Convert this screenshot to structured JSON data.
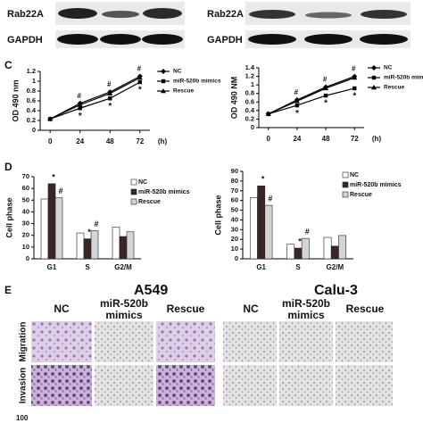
{
  "blots": [
    {
      "labels": [
        "Rab22A",
        "GAPDH"
      ]
    },
    {
      "labels": [
        "Rab22A",
        "GAPDH"
      ]
    }
  ],
  "panel_labels": [
    "C",
    "D",
    "E"
  ],
  "chart_data": [
    {
      "type": "line",
      "ylabel": "OD 490 nm",
      "xlabel": "(h)",
      "x": [
        0,
        24,
        48,
        72
      ],
      "xlim": [
        -8,
        80
      ],
      "xticks": [
        0,
        24,
        48,
        72
      ],
      "ylim": [
        0,
        1.2
      ],
      "yticks": [
        0,
        0.2,
        0.4,
        0.6,
        0.8,
        1,
        1.2
      ],
      "series": [
        {
          "name": "NC",
          "color": "#000000",
          "marker": "diamond",
          "values": [
            0.23,
            0.55,
            0.78,
            1.1
          ],
          "point_labels": [
            null,
            "#",
            "#",
            "#"
          ]
        },
        {
          "name": "miR-520b mimics",
          "color": "#000000",
          "marker": "square",
          "values": [
            0.23,
            0.45,
            0.65,
            0.98
          ],
          "point_labels": [
            null,
            "*",
            "*",
            "*"
          ]
        },
        {
          "name": "Rescue",
          "color": "#000000",
          "marker": "triangle",
          "values": [
            0.23,
            0.52,
            0.75,
            1.07
          ],
          "point_labels": [
            null,
            null,
            null,
            null
          ]
        }
      ]
    },
    {
      "type": "line",
      "ylabel": "OD 490 NM",
      "xlabel": "(h)",
      "x": [
        0,
        24,
        48,
        72
      ],
      "xlim": [
        -8,
        80
      ],
      "xticks": [
        0,
        24,
        48,
        72
      ],
      "ylim": [
        0,
        1.4
      ],
      "yticks": [
        0,
        0.2,
        0.4,
        0.6,
        0.8,
        1,
        1.2,
        1.4
      ],
      "series": [
        {
          "name": "NC",
          "color": "#000000",
          "marker": "diamond",
          "values": [
            0.32,
            0.65,
            0.95,
            1.2
          ],
          "point_labels": [
            null,
            "#",
            "#",
            "#"
          ]
        },
        {
          "name": "miR-520b mimics",
          "color": "#000000",
          "marker": "square",
          "values": [
            0.32,
            0.52,
            0.75,
            0.92
          ],
          "point_labels": [
            null,
            "*",
            "*",
            "*"
          ]
        },
        {
          "name": "Rescue",
          "color": "#000000",
          "marker": "triangle",
          "values": [
            0.32,
            0.62,
            0.92,
            1.17
          ],
          "point_labels": [
            null,
            null,
            null,
            null
          ]
        }
      ]
    },
    {
      "type": "bar",
      "ylabel": "Cell phase",
      "categories": [
        "G1",
        "S",
        "G2/M"
      ],
      "ylim": [
        0,
        70
      ],
      "yticks": [
        0,
        10,
        20,
        30,
        40,
        50,
        60,
        70
      ],
      "series": [
        {
          "name": "NC",
          "color": "#ffffff",
          "values": [
            51,
            22,
            27
          ],
          "point_labels": [
            null,
            null,
            null
          ]
        },
        {
          "name": "miR-520b mimics",
          "color": "#3b2626",
          "values": [
            64,
            17,
            19
          ],
          "point_labels": [
            "*",
            "*",
            null
          ]
        },
        {
          "name": "Rescue",
          "color": "#d4d4d4",
          "values": [
            52,
            24,
            23
          ],
          "point_labels": [
            "#",
            "#",
            null
          ]
        }
      ]
    },
    {
      "type": "bar",
      "ylabel": "Cell phase",
      "categories": [
        "G1",
        "S",
        "G2/M"
      ],
      "ylim": [
        0,
        90
      ],
      "yticks": [
        0,
        10,
        20,
        30,
        40,
        50,
        60,
        70,
        80,
        90
      ],
      "series": [
        {
          "name": "NC",
          "color": "#ffffff",
          "values": [
            63,
            15,
            22
          ],
          "point_labels": [
            null,
            null,
            null
          ]
        },
        {
          "name": "miR-520b mimics",
          "color": "#3b2626",
          "values": [
            75,
            11,
            13
          ],
          "point_labels": [
            "*",
            "*",
            null
          ]
        },
        {
          "name": "Rescue",
          "color": "#d4d4d4",
          "values": [
            55,
            21,
            24
          ],
          "point_labels": [
            "#",
            "#",
            null
          ]
        }
      ]
    }
  ],
  "panel_e": {
    "cell_lines": [
      "A549",
      "Calu-3"
    ],
    "columns": [
      "NC",
      "miR-520b mimics",
      "Rescue"
    ],
    "rows": [
      "Migration",
      "Invasion"
    ]
  },
  "footer": "100"
}
